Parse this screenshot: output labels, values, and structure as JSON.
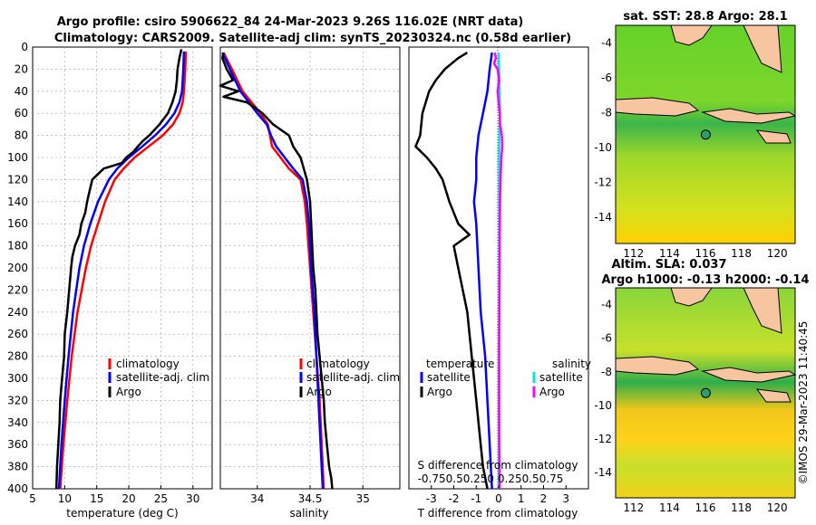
{
  "figure": {
    "title_line1": "Argo profile: csiro 5906622_84 24-Mar-2023 9.26S 116.02E (NRT data)",
    "title_line2": "Climatology: CARS2009. Satellite-adj clim: synTS_20230324.nc (0.58d earlier)",
    "credit": "©IMOS 29-Mar-2023 11:40:45",
    "colors": {
      "climatology": "#ff0000",
      "satellite": "#0000ff",
      "argo": "#000000",
      "sal_satellite": "#00e5e5",
      "sal_argo": "#ff00ff"
    }
  },
  "chart_data": [
    {
      "id": "temperature",
      "type": "line",
      "xlabel": "temperature (deg C)",
      "ylabel": "",
      "xlim": [
        5,
        33
      ],
      "ylim": [
        0,
        400
      ],
      "xticks": [
        "5",
        "10",
        "15",
        "20",
        "25",
        "30"
      ],
      "xtick_values": [
        5,
        10,
        15,
        20,
        25,
        30
      ],
      "yticks": [
        "0",
        "20",
        "40",
        "60",
        "80",
        "100",
        "120",
        "140",
        "160",
        "180",
        "200",
        "220",
        "240",
        "260",
        "280",
        "300",
        "320",
        "340",
        "360",
        "380",
        "400"
      ],
      "ytick_values": [
        0,
        20,
        40,
        60,
        80,
        100,
        120,
        140,
        160,
        180,
        200,
        220,
        240,
        260,
        280,
        300,
        320,
        340,
        360,
        380,
        400
      ],
      "grid": true,
      "legend_position": "lower-right",
      "series": [
        {
          "name": "climatology",
          "color": "#ff0000",
          "depth": [
            4,
            20,
            40,
            50,
            60,
            70,
            80,
            90,
            100,
            110,
            120,
            140,
            160,
            180,
            200,
            240,
            280,
            320,
            360,
            400
          ],
          "values": [
            28.9,
            28.8,
            28.6,
            28.4,
            27.9,
            26.9,
            25.3,
            23.1,
            20.9,
            19.2,
            17.8,
            16.3,
            15.2,
            14.1,
            13.3,
            12.0,
            11.1,
            10.4,
            9.8,
            9.3
          ]
        },
        {
          "name": "satellite-adj. clim",
          "color": "#0000ff",
          "depth": [
            4,
            20,
            40,
            50,
            60,
            70,
            80,
            90,
            100,
            110,
            120,
            140,
            160,
            180,
            200,
            240,
            280,
            320,
            360,
            400
          ],
          "values": [
            28.6,
            28.5,
            28.3,
            27.9,
            27.1,
            25.8,
            24.1,
            22.1,
            20.0,
            18.2,
            16.9,
            15.2,
            14.0,
            13.0,
            12.3,
            11.3,
            10.6,
            10.0,
            9.5,
            9.1
          ]
        },
        {
          "name": "Argo",
          "color": "#000000",
          "depth": [
            2,
            10,
            20,
            30,
            40,
            50,
            60,
            70,
            80,
            85,
            90,
            95,
            100,
            105,
            110,
            115,
            120,
            130,
            140,
            150,
            160,
            170,
            180,
            190,
            200,
            220,
            240,
            260,
            280,
            300,
            320,
            340,
            360,
            380,
            400
          ],
          "values": [
            28.2,
            27.9,
            27.6,
            27.5,
            27.3,
            26.8,
            26.1,
            24.8,
            23.2,
            22.2,
            21.4,
            20.7,
            19.6,
            18.9,
            16.1,
            15.2,
            14.3,
            13.9,
            13.5,
            13.2,
            12.6,
            12.3,
            11.6,
            11.2,
            11.0,
            10.7,
            10.4,
            10.0,
            9.9,
            9.6,
            9.3,
            9.2,
            9.0,
            8.8,
            8.7
          ]
        }
      ]
    },
    {
      "id": "salinity",
      "type": "line",
      "xlabel": "salinity",
      "ylabel": "",
      "xlim": [
        33.65,
        35.35
      ],
      "ylim": [
        0,
        400
      ],
      "xticks": [
        "34",
        "34.5",
        "35"
      ],
      "xtick_values": [
        34,
        34.5,
        35
      ],
      "grid": true,
      "legend_position": "lower-right",
      "series": [
        {
          "name": "climatology",
          "color": "#ff0000",
          "depth": [
            5,
            20,
            40,
            60,
            70,
            80,
            90,
            100,
            110,
            120,
            140,
            160,
            200,
            240,
            280,
            320,
            360,
            400
          ],
          "values": [
            33.68,
            33.76,
            33.86,
            34.03,
            34.1,
            34.12,
            34.14,
            34.22,
            34.3,
            34.41,
            34.45,
            34.47,
            34.5,
            34.53,
            34.56,
            34.59,
            34.61,
            34.63
          ]
        },
        {
          "name": "satellite-adj. clim",
          "color": "#0000ff",
          "depth": [
            5,
            20,
            40,
            60,
            70,
            80,
            90,
            100,
            110,
            120,
            140,
            160,
            200,
            240,
            280,
            320,
            360,
            400
          ],
          "values": [
            33.67,
            33.74,
            33.84,
            34.0,
            34.09,
            34.13,
            34.18,
            34.26,
            34.34,
            34.43,
            34.47,
            34.49,
            34.51,
            34.54,
            34.56,
            34.58,
            34.6,
            34.62
          ]
        },
        {
          "name": "Argo",
          "color": "#000000",
          "depth": [
            5,
            10,
            20,
            30,
            35,
            40,
            45,
            50,
            55,
            60,
            70,
            80,
            90,
            100,
            110,
            120,
            140,
            160,
            180,
            200,
            220,
            240,
            260,
            280,
            300,
            320,
            340,
            360,
            380,
            390,
            400
          ],
          "values": [
            33.68,
            33.67,
            33.71,
            33.77,
            33.65,
            33.82,
            33.68,
            33.9,
            33.98,
            34.05,
            34.15,
            34.3,
            34.34,
            34.41,
            34.44,
            34.47,
            34.5,
            34.51,
            34.52,
            34.53,
            34.55,
            34.56,
            34.57,
            34.59,
            34.61,
            34.63,
            34.64,
            34.66,
            34.68,
            34.7,
            34.71
          ]
        }
      ]
    },
    {
      "id": "difference",
      "type": "line",
      "xlabel": "T difference from climatology",
      "secondary_xlabel": "S difference from climatology",
      "secondary_xticks": "-0.750.50.250 0.250.50.75",
      "xlim": [
        -4,
        4
      ],
      "ylim": [
        0,
        400
      ],
      "xticks": [
        "-3",
        "-2",
        "-1",
        "0",
        "1",
        "2",
        "3"
      ],
      "xtick_values": [
        -3,
        -2,
        -1,
        0,
        1,
        2,
        3
      ],
      "grid": false,
      "legend_position": "lower-left / lower-right",
      "legend_temperature_title": "temperature",
      "legend_salinity_title": "salinity",
      "series": [
        {
          "name": "satellite",
          "group": "temperature",
          "color": "#0000ff",
          "depth": [
            5,
            20,
            40,
            60,
            80,
            100,
            120,
            140,
            160,
            200,
            240,
            280,
            320,
            360,
            400
          ],
          "values": [
            -0.3,
            -0.4,
            -0.5,
            -0.7,
            -0.9,
            -1.0,
            -1.0,
            -1.1,
            -1.0,
            -0.9,
            -0.8,
            -0.6,
            -0.5,
            -0.4,
            -0.3
          ]
        },
        {
          "name": "Argo",
          "group": "temperature",
          "color": "#000000",
          "depth": [
            5,
            10,
            20,
            30,
            40,
            60,
            80,
            90,
            100,
            110,
            120,
            140,
            160,
            170,
            180,
            200,
            220,
            240,
            280,
            320,
            360,
            380,
            400
          ],
          "values": [
            -1.4,
            -1.8,
            -2.4,
            -2.8,
            -3.1,
            -3.4,
            -3.5,
            -3.7,
            -3.2,
            -2.8,
            -2.5,
            -2.2,
            -1.8,
            -1.3,
            -2.0,
            -1.8,
            -1.6,
            -1.4,
            -1.2,
            -1.0,
            -0.8,
            -0.7,
            -0.5
          ]
        },
        {
          "name": "satellite",
          "group": "salinity",
          "color": "#00e5e5",
          "depth": [
            5,
            20,
            40,
            60,
            80,
            100,
            120,
            160,
            200,
            240,
            280,
            320,
            360,
            400
          ],
          "values": [
            0.0,
            0.02,
            0.04,
            0.06,
            0.03,
            0.02,
            0.02,
            0.03,
            0.02,
            0.02,
            0.02,
            0.02,
            0.01,
            0.01
          ]
        },
        {
          "name": "Argo",
          "group": "salinity",
          "color": "#ff00ff",
          "depth": [
            5,
            10,
            15,
            20,
            30,
            40,
            50,
            60,
            70,
            80,
            90,
            100,
            110,
            120,
            140,
            160,
            200,
            240,
            280,
            320,
            360,
            400
          ],
          "values": [
            -0.17,
            -0.12,
            -0.2,
            -0.05,
            0.02,
            -0.05,
            0.0,
            0.05,
            0.06,
            0.14,
            0.16,
            0.12,
            0.1,
            0.08,
            0.06,
            0.05,
            0.04,
            0.03,
            0.02,
            0.02,
            0.03,
            0.05
          ]
        }
      ]
    }
  ],
  "maps": [
    {
      "id": "sst",
      "title": "sat. SST: 28.8 Argo: 28.1",
      "xticks": [
        "112",
        "114",
        "116",
        "118",
        "120"
      ],
      "yticks": [
        "-4",
        "-6",
        "-8",
        "-10",
        "-12",
        "-14"
      ],
      "lon_range": [
        111,
        121
      ],
      "lat_range": [
        -15.5,
        -3
      ],
      "argo_position": {
        "lon": 116.02,
        "lat": -9.26
      }
    },
    {
      "id": "sla",
      "title_line1": "Altim. SLA: 0.037",
      "title_line2": "Argo h1000: -0.13 h2000: -0.14",
      "xticks": [
        "112",
        "114",
        "116",
        "118",
        "120"
      ],
      "yticks": [
        "-4",
        "-6",
        "-8",
        "-10",
        "-12",
        "-14"
      ],
      "lon_range": [
        111,
        121
      ],
      "lat_range": [
        -15.5,
        -3
      ],
      "argo_position": {
        "lon": 116.02,
        "lat": -9.26
      }
    }
  ],
  "legends": {
    "temp": [
      "climatology",
      "satellite-adj. clim",
      "Argo"
    ],
    "sal": [
      "climatology",
      "satellite-adj. clim",
      "Argo"
    ],
    "diff_temp": [
      "satellite",
      "Argo"
    ],
    "diff_sal": [
      "satellite",
      "Argo"
    ]
  }
}
